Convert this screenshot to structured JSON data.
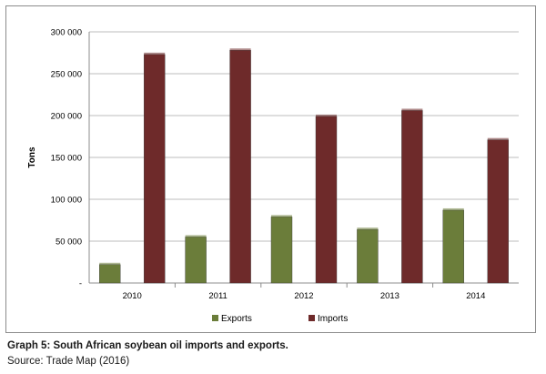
{
  "chart_data": {
    "type": "bar",
    "categories": [
      "2010",
      "2011",
      "2012",
      "2013",
      "2014"
    ],
    "series": [
      {
        "name": "Exports",
        "values": [
          22000,
          55000,
          79000,
          64000,
          87000
        ],
        "color": "#6b7d3a"
      },
      {
        "name": "Imports",
        "values": [
          273000,
          278000,
          199000,
          206000,
          171000
        ],
        "color": "#6e2a2a"
      }
    ],
    "ylabel": "Tons",
    "xlabel": "",
    "ylim": [
      0,
      300000
    ],
    "yticks": [
      {
        "value": 0,
        "label": "-"
      },
      {
        "value": 50000,
        "label": "50 000"
      },
      {
        "value": 100000,
        "label": "100 000"
      },
      {
        "value": 150000,
        "label": "150 000"
      },
      {
        "value": 200000,
        "label": "200 000"
      },
      {
        "value": 250000,
        "label": "250 000"
      },
      {
        "value": 300000,
        "label": "300 000"
      }
    ],
    "grid": true,
    "legend_position": "bottom"
  },
  "caption": {
    "title": "Graph 5: South African soybean oil imports and exports.",
    "source": "Source: Trade Map (2016)"
  }
}
